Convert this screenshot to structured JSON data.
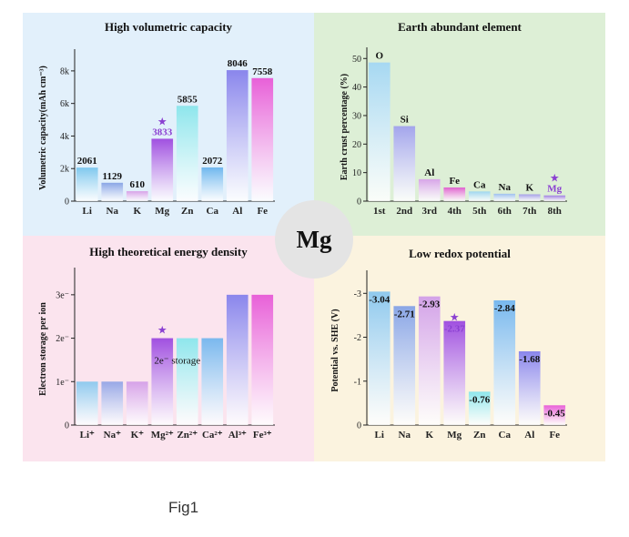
{
  "center_label": "Mg",
  "caption": "Fig1",
  "colors": {
    "panel_blue": "#e2f0fb",
    "panel_green": "#ddefd6",
    "panel_pink": "#fbe4ee",
    "panel_cream": "#fbf3df",
    "highlight": "#8a3fd1"
  },
  "chart_data": [
    {
      "type": "bar",
      "title": "High volumetric capacity",
      "ylabel": "Volumetric capacity(mAh cm⁻³)",
      "ylim": [
        0,
        9000
      ],
      "yticks": [
        {
          "value": 0,
          "label": "0"
        },
        {
          "value": 2000,
          "label": "2k"
        },
        {
          "value": 4000,
          "label": "4k"
        },
        {
          "value": 6000,
          "label": "6k"
        },
        {
          "value": 8000,
          "label": "8k"
        }
      ],
      "categories": [
        "Li",
        "Na",
        "K",
        "Mg",
        "Zn",
        "Ca",
        "Al",
        "Fe"
      ],
      "values": [
        2061,
        1129,
        610,
        3833,
        5855,
        2072,
        8046,
        7558
      ],
      "labels": [
        "2061",
        "1129",
        "610",
        "3833",
        "5855",
        "2072",
        "8046",
        "7558"
      ],
      "colors": [
        "#7fc8ee",
        "#8aa6e6",
        "#d7a2e8",
        "#a050e0",
        "#8ee6ec",
        "#6fb7ee",
        "#8a86ec",
        "#e860d8"
      ],
      "highlight_index": 3,
      "highlight_mark": "★"
    },
    {
      "type": "bar",
      "title": "Earth abundant element",
      "ylabel": "Earth crust percentage (%)",
      "ylim": [
        0,
        52
      ],
      "yticks": [
        {
          "value": 0,
          "label": "0"
        },
        {
          "value": 10,
          "label": "10"
        },
        {
          "value": 20,
          "label": "20"
        },
        {
          "value": 30,
          "label": "30"
        },
        {
          "value": 40,
          "label": "40"
        },
        {
          "value": 50,
          "label": "50"
        }
      ],
      "categories": [
        "1st",
        "2nd",
        "3rd",
        "4th",
        "5th",
        "6th",
        "7th",
        "8th"
      ],
      "values": [
        48.6,
        26.3,
        7.7,
        4.8,
        3.4,
        2.6,
        2.4,
        2.0
      ],
      "labels": [
        "O",
        "Si",
        "Al",
        "Fe",
        "Ca",
        "Na",
        "K",
        "Mg"
      ],
      "colors": [
        "#a6d8f2",
        "#a3a5ec",
        "#d7a5e8",
        "#e062cf",
        "#9fd6ee",
        "#9ec0ee",
        "#a59fe8",
        "#a080e0"
      ],
      "highlight_index": 7,
      "highlight_mark": "★"
    },
    {
      "type": "bar",
      "title": "High theoretical energy density",
      "ylabel": "Electron storage per ion",
      "ylim": [
        0,
        3.5
      ],
      "yticks": [
        {
          "value": 0,
          "label": "0"
        },
        {
          "value": 1,
          "label": "1e⁻"
        },
        {
          "value": 2,
          "label": "2e⁻"
        },
        {
          "value": 3,
          "label": "3e⁻"
        }
      ],
      "categories": [
        "Li⁺",
        "Na⁺",
        "K⁺",
        "Mg²⁺",
        "Zn²⁺",
        "Ca²⁺",
        "Al³⁺",
        "Fe³⁺"
      ],
      "values": [
        1,
        1,
        1,
        2,
        2,
        2,
        3,
        3
      ],
      "colors": [
        "#8fc9ee",
        "#98a8e6",
        "#d6a2e8",
        "#a050e0",
        "#8ee6ec",
        "#7ab8ee",
        "#8a86ec",
        "#e860d8"
      ],
      "highlight_index": 3,
      "highlight_mark": "★",
      "annotation": "2e⁻ storage"
    },
    {
      "type": "bar",
      "title": "Low redox potential",
      "ylabel": "Potential vs. SHE (V)",
      "ylim": [
        0,
        -3.4
      ],
      "yticks": [
        {
          "value": 0,
          "label": "0"
        },
        {
          "value": -1,
          "label": "-1"
        },
        {
          "value": -2,
          "label": "-2"
        },
        {
          "value": -3,
          "label": "-3"
        }
      ],
      "categories": [
        "Li",
        "Na",
        "K",
        "Mg",
        "Zn",
        "Ca",
        "Al",
        "Fe"
      ],
      "values": [
        -3.04,
        -2.71,
        -2.93,
        -2.37,
        -0.76,
        -2.84,
        -1.68,
        -0.45
      ],
      "labels": [
        "-3.04",
        "-2.71",
        "-2.93",
        "-2.37",
        "-0.76",
        "-2.84",
        "-1.68",
        "-0.45"
      ],
      "colors": [
        "#8fc9ee",
        "#8aa6e6",
        "#d3a2e8",
        "#a050e0",
        "#8ee6ec",
        "#78b8ee",
        "#8a86ec",
        "#e860d8"
      ],
      "highlight_index": 3,
      "highlight_mark": "★"
    }
  ]
}
